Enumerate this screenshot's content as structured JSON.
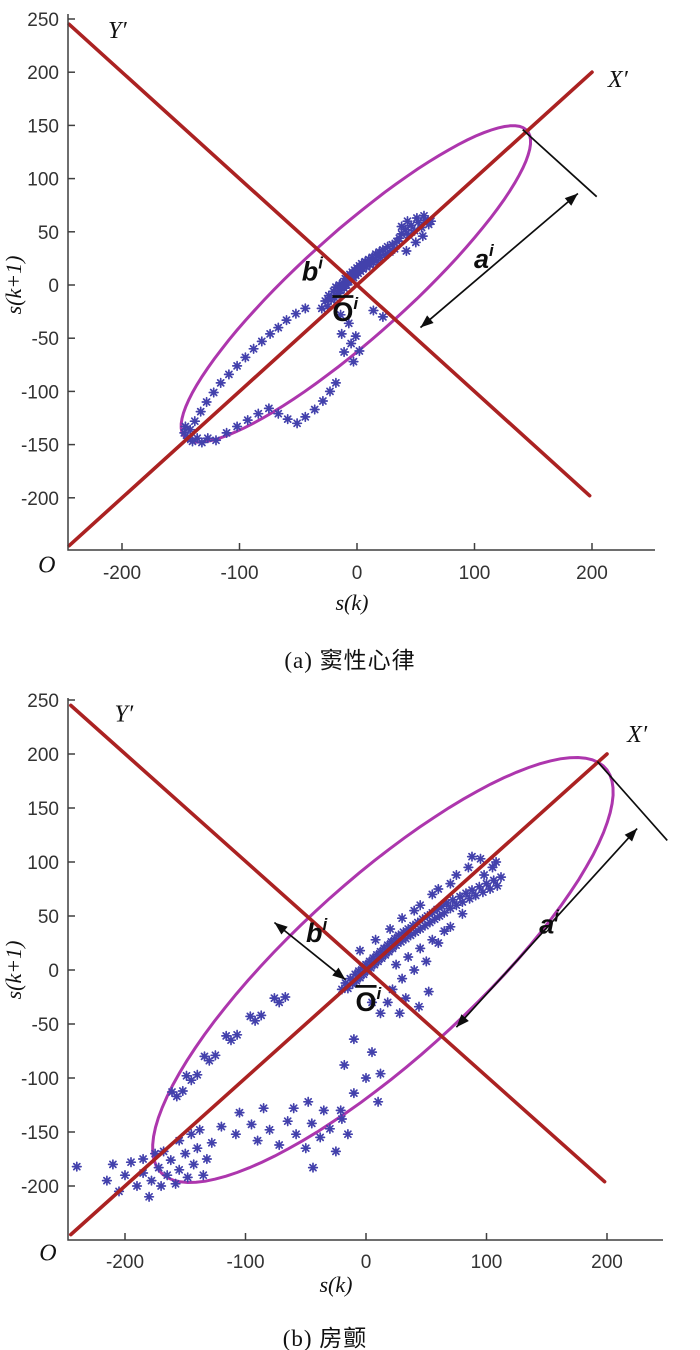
{
  "colors": {
    "marker": "#4341ac",
    "rotated_axis": "#ab2222",
    "ellipse": "#ad36ad",
    "axis": "#3f3f3f",
    "tick_text": "#333333",
    "annotation": "#0d0d0d"
  },
  "chart_data": [
    {
      "id": "a",
      "type": "scatter",
      "caption": "(a) 窦性心律",
      "xlabel": "s(k)",
      "ylabel": "s(k+1)",
      "origin_label": "O",
      "xlim": [
        -250,
        250
      ],
      "ylim": [
        -250,
        250
      ],
      "x_ticks": [
        -200,
        -100,
        0,
        100,
        200
      ],
      "y_ticks": [
        250,
        200,
        150,
        100,
        50,
        0,
        -50,
        -100,
        -150,
        -200
      ],
      "rotated_axes": {
        "x_line": [
          [
            -245,
            -245
          ],
          [
            200,
            200
          ]
        ],
        "y_line": [
          [
            -245,
            245
          ],
          [
            198,
            -198
          ]
        ],
        "x_label": {
          "text": "X′",
          "x": 222,
          "y": 186
        },
        "y_label": {
          "text": "Y′",
          "x": -204,
          "y": 232
        },
        "origin": {
          "x": -264,
          "y": -270
        }
      },
      "ellipse": {
        "cx": -1,
        "cy": 1,
        "semi_major": 205,
        "semi_minor": 47,
        "angle_deg": 45
      },
      "annotations": {
        "a_label": {
          "text": "a",
          "sup": "i",
          "x": 108,
          "y": 16
        },
        "b_label": {
          "text": "b",
          "sup": "i",
          "x": -38,
          "y": 4
        },
        "o_label": {
          "text": "O",
          "sup": "i",
          "overline": true,
          "x": -10,
          "y": -34
        },
        "major_tick_line": [
          [
            141,
            146
          ],
          [
            204,
            83
          ]
        ],
        "a_arrow": [
          [
            54,
            -40
          ],
          [
            188,
            86
          ]
        ],
        "b_arrow": null
      },
      "points": [
        [
          -30,
          -22
        ],
        [
          -27,
          -15
        ],
        [
          -25,
          -20
        ],
        [
          -24,
          -10
        ],
        [
          -22,
          -14
        ],
        [
          -20,
          -6
        ],
        [
          -19,
          -12
        ],
        [
          -18,
          -2
        ],
        [
          -16,
          -8
        ],
        [
          -15,
          0
        ],
        [
          -14,
          -5
        ],
        [
          -12,
          2
        ],
        [
          -11,
          -3
        ],
        [
          -10,
          6
        ],
        [
          -9,
          0
        ],
        [
          -8,
          8
        ],
        [
          -7,
          3
        ],
        [
          -6,
          10
        ],
        [
          -5,
          5
        ],
        [
          -4,
          12
        ],
        [
          -3,
          7
        ],
        [
          -2,
          14
        ],
        [
          -1,
          9
        ],
        [
          0,
          16
        ],
        [
          1,
          11
        ],
        [
          2,
          18
        ],
        [
          3,
          13
        ],
        [
          4,
          20
        ],
        [
          5,
          15
        ],
        [
          7,
          22
        ],
        [
          8,
          17
        ],
        [
          10,
          24
        ],
        [
          11,
          19
        ],
        [
          13,
          26
        ],
        [
          14,
          21
        ],
        [
          16,
          29
        ],
        [
          17,
          23
        ],
        [
          19,
          31
        ],
        [
          20,
          26
        ],
        [
          22,
          33
        ],
        [
          24,
          28
        ],
        [
          26,
          36
        ],
        [
          28,
          31
        ],
        [
          30,
          38
        ],
        [
          32,
          34
        ],
        [
          34,
          41
        ],
        [
          36,
          44
        ],
        [
          38,
          48
        ],
        [
          41,
          52
        ],
        [
          44,
          47
        ],
        [
          46,
          56
        ],
        [
          49,
          51
        ],
        [
          52,
          59
        ],
        [
          55,
          54
        ],
        [
          58,
          61
        ],
        [
          61,
          57
        ],
        [
          43,
          60
        ],
        [
          38,
          55
        ],
        [
          51,
          63
        ],
        [
          57,
          65
        ],
        [
          63,
          60
        ],
        [
          42,
          32
        ],
        [
          50,
          40
        ],
        [
          56,
          46
        ],
        [
          -14,
          -28
        ],
        [
          -7,
          -36
        ],
        [
          -13,
          -46
        ],
        [
          -5,
          -55
        ],
        [
          -11,
          -63
        ],
        [
          -3,
          -72
        ],
        [
          2,
          -62
        ],
        [
          -1,
          -48
        ],
        [
          14,
          -24
        ],
        [
          22,
          -30
        ],
        [
          -44,
          -22
        ],
        [
          -52,
          -27
        ],
        [
          -60,
          -33
        ],
        [
          -67,
          -40
        ],
        [
          -74,
          -46
        ],
        [
          -81,
          -53
        ],
        [
          -88,
          -60
        ],
        [
          -95,
          -68
        ],
        [
          -102,
          -76
        ],
        [
          -109,
          -84
        ],
        [
          -116,
          -92
        ],
        [
          -122,
          -101
        ],
        [
          -128,
          -110
        ],
        [
          -133,
          -119
        ],
        [
          -138,
          -128
        ],
        [
          -142,
          -136
        ],
        [
          -147,
          -139
        ],
        [
          -144,
          -144
        ],
        [
          -140,
          -147
        ],
        [
          -136,
          -144
        ],
        [
          -132,
          -148
        ],
        [
          -127,
          -144
        ],
        [
          -146,
          -133
        ],
        [
          -120,
          -146
        ],
        [
          -111,
          -139
        ],
        [
          -102,
          -133
        ],
        [
          -93,
          -127
        ],
        [
          -84,
          -121
        ],
        [
          -75,
          -116
        ],
        [
          -67,
          -121
        ],
        [
          -59,
          -126
        ],
        [
          -51,
          -130
        ],
        [
          -44,
          -124
        ],
        [
          -36,
          -117
        ],
        [
          -29,
          -109
        ],
        [
          -23,
          -100
        ],
        [
          -18,
          -92
        ]
      ]
    },
    {
      "id": "b",
      "type": "scatter",
      "caption": "(b) 房颤",
      "xlabel": "s(k)",
      "ylabel": "s(k+1)",
      "origin_label": "O",
      "xlim": [
        -250,
        250
      ],
      "ylim": [
        -250,
        250
      ],
      "x_ticks": [
        -200,
        -100,
        0,
        100,
        200
      ],
      "y_ticks": [
        250,
        200,
        150,
        100,
        50,
        0,
        -50,
        -100,
        -150,
        -200
      ],
      "rotated_axes": {
        "x_line": [
          [
            -245,
            -245
          ],
          [
            200,
            200
          ]
        ],
        "y_line": [
          [
            -245,
            245
          ],
          [
            198,
            -196
          ]
        ],
        "x_label": {
          "text": "X′",
          "x": 225,
          "y": 211
        },
        "y_label": {
          "text": "Y′",
          "x": -201,
          "y": 230
        },
        "origin": {
          "x": -264,
          "y": -269
        }
      },
      "ellipse": {
        "cx": 14,
        "cy": 0,
        "semi_major": 263,
        "semi_minor": 78,
        "angle_deg": 46
      },
      "annotations": {
        "a_label": {
          "text": "a",
          "sup": "i",
          "x": 152,
          "y": 34
        },
        "b_label": {
          "text": "b",
          "sup": "i",
          "x": -41,
          "y": 26
        },
        "o_label": {
          "text": "O",
          "sup": "i",
          "overline": true,
          "x": 2,
          "y": -38
        },
        "major_tick_line": [
          [
            192,
            193
          ],
          [
            250,
            120
          ]
        ],
        "a_arrow": [
          [
            75,
            -53
          ],
          [
            225,
            131
          ]
        ],
        "b_arrow": [
          [
            -76,
            44
          ],
          [
            -17,
            -9
          ]
        ]
      },
      "points": [
        [
          -20,
          -18
        ],
        [
          -17,
          -12
        ],
        [
          -15,
          -17
        ],
        [
          -13,
          -8
        ],
        [
          -11,
          -13
        ],
        [
          -9,
          -4
        ],
        [
          -8,
          -10
        ],
        [
          -6,
          -1
        ],
        [
          -5,
          -7
        ],
        [
          -3,
          2
        ],
        [
          -2,
          -4
        ],
        [
          0,
          5
        ],
        [
          1,
          -1
        ],
        [
          3,
          8
        ],
        [
          4,
          2
        ],
        [
          6,
          11
        ],
        [
          7,
          5
        ],
        [
          9,
          14
        ],
        [
          10,
          8
        ],
        [
          12,
          17
        ],
        [
          13,
          11
        ],
        [
          15,
          20
        ],
        [
          16,
          14
        ],
        [
          18,
          23
        ],
        [
          19,
          17
        ],
        [
          21,
          26
        ],
        [
          22,
          20
        ],
        [
          24,
          29
        ],
        [
          25,
          23
        ],
        [
          27,
          32
        ],
        [
          29,
          26
        ],
        [
          31,
          35
        ],
        [
          33,
          29
        ],
        [
          35,
          38
        ],
        [
          37,
          32
        ],
        [
          39,
          41
        ],
        [
          41,
          35
        ],
        [
          43,
          44
        ],
        [
          45,
          38
        ],
        [
          47,
          47
        ],
        [
          49,
          41
        ],
        [
          51,
          50
        ],
        [
          53,
          44
        ],
        [
          55,
          53
        ],
        [
          57,
          47
        ],
        [
          59,
          56
        ],
        [
          61,
          50
        ],
        [
          63,
          59
        ],
        [
          65,
          53
        ],
        [
          67,
          62
        ],
        [
          70,
          57
        ],
        [
          72,
          65
        ],
        [
          75,
          60
        ],
        [
          78,
          68
        ],
        [
          80,
          63
        ],
        [
          83,
          71
        ],
        [
          86,
          66
        ],
        [
          88,
          74
        ],
        [
          91,
          69
        ],
        [
          94,
          77
        ],
        [
          97,
          72
        ],
        [
          100,
          80
        ],
        [
          103,
          75
        ],
        [
          106,
          83
        ],
        [
          109,
          78
        ],
        [
          112,
          86
        ],
        [
          30,
          48
        ],
        [
          45,
          60
        ],
        [
          60,
          75
        ],
        [
          75,
          88
        ],
        [
          85,
          95
        ],
        [
          95,
          103
        ],
        [
          105,
          95
        ],
        [
          88,
          105
        ],
        [
          70,
          80
        ],
        [
          55,
          70
        ],
        [
          40,
          55
        ],
        [
          20,
          38
        ],
        [
          8,
          28
        ],
        [
          -5,
          18
        ],
        [
          98,
          88
        ],
        [
          108,
          100
        ],
        [
          25,
          5
        ],
        [
          35,
          12
        ],
        [
          45,
          20
        ],
        [
          55,
          28
        ],
        [
          65,
          36
        ],
        [
          30,
          -8
        ],
        [
          40,
          0
        ],
        [
          50,
          8
        ],
        [
          22,
          -18
        ],
        [
          33,
          -26
        ],
        [
          44,
          -34
        ],
        [
          52,
          -20
        ],
        [
          28,
          -40
        ],
        [
          18,
          -30
        ],
        [
          12,
          -40
        ],
        [
          5,
          -30
        ],
        [
          60,
          25
        ],
        [
          70,
          40
        ],
        [
          80,
          52
        ],
        [
          -67,
          -25
        ],
        [
          -72,
          -30
        ],
        [
          -76,
          -26
        ],
        [
          -87,
          -42
        ],
        [
          -92,
          -47
        ],
        [
          -96,
          -43
        ],
        [
          -107,
          -60
        ],
        [
          -112,
          -65
        ],
        [
          -116,
          -61
        ],
        [
          -125,
          -79
        ],
        [
          -130,
          -84
        ],
        [
          -134,
          -80
        ],
        [
          -140,
          -97
        ],
        [
          -145,
          -102
        ],
        [
          -149,
          -98
        ],
        [
          -152,
          -112
        ],
        [
          -157,
          -117
        ],
        [
          -161,
          -113
        ],
        [
          -215,
          -195
        ],
        [
          -205,
          -205
        ],
        [
          -200,
          -190
        ],
        [
          -195,
          -178
        ],
        [
          -190,
          -200
        ],
        [
          -185,
          -188
        ],
        [
          -180,
          -210
        ],
        [
          -178,
          -195
        ],
        [
          -172,
          -183
        ],
        [
          -170,
          -200
        ],
        [
          -165,
          -190
        ],
        [
          -162,
          -176
        ],
        [
          -158,
          -198
        ],
        [
          -155,
          -185
        ],
        [
          -150,
          -170
        ],
        [
          -148,
          -192
        ],
        [
          -143,
          -180
        ],
        [
          -140,
          -165
        ],
        [
          -135,
          -190
        ],
        [
          -132,
          -175
        ],
        [
          -128,
          -160
        ],
        [
          -210,
          -180
        ],
        [
          -168,
          -168
        ],
        [
          -155,
          -158
        ],
        [
          -145,
          -152
        ],
        [
          -138,
          -148
        ],
        [
          -175,
          -170
        ],
        [
          -185,
          -175
        ],
        [
          -120,
          -145
        ],
        [
          -108,
          -152
        ],
        [
          -95,
          -143
        ],
        [
          -90,
          -158
        ],
        [
          -80,
          -148
        ],
        [
          -72,
          -162
        ],
        [
          -65,
          -140
        ],
        [
          -58,
          -152
        ],
        [
          -50,
          -165
        ],
        [
          -45,
          -142
        ],
        [
          -38,
          -155
        ],
        [
          -30,
          -147
        ],
        [
          -25,
          -168
        ],
        [
          -15,
          -152
        ],
        [
          -105,
          -132
        ],
        [
          -85,
          -128
        ],
        [
          -60,
          -128
        ],
        [
          -35,
          -130
        ],
        [
          -20,
          -138
        ],
        [
          -48,
          -122
        ],
        [
          -10,
          -64
        ],
        [
          5,
          -76
        ],
        [
          -18,
          -88
        ],
        [
          12,
          -96
        ],
        [
          -21,
          -130
        ],
        [
          -10,
          -114
        ],
        [
          0,
          -100
        ],
        [
          10,
          -122
        ],
        [
          -240,
          -182
        ],
        [
          -44,
          -183
        ]
      ]
    }
  ]
}
